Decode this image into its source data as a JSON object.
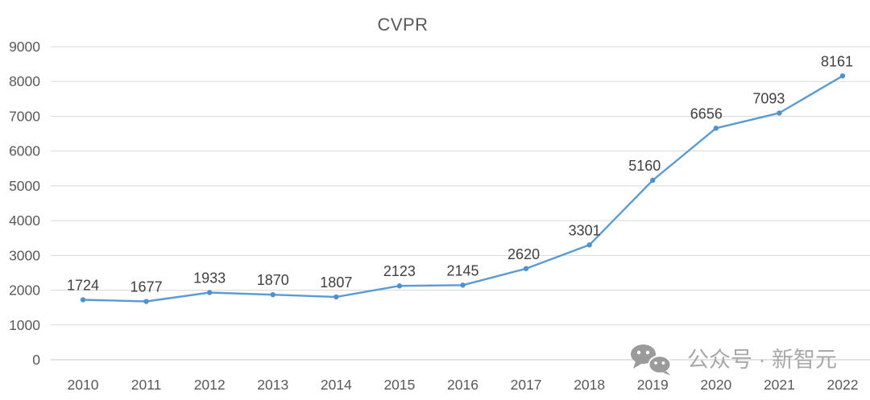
{
  "chart_data": {
    "type": "line",
    "title": "CVPR",
    "x": [
      2010,
      2011,
      2012,
      2013,
      2014,
      2015,
      2016,
      2017,
      2018,
      2019,
      2020,
      2021,
      2022
    ],
    "values": [
      1724,
      1677,
      1933,
      1870,
      1807,
      2123,
      2145,
      2620,
      3301,
      5160,
      6656,
      7093,
      8161
    ],
    "ylim": [
      0,
      9000
    ],
    "ytick_step": 1000,
    "yticks": [
      0,
      1000,
      2000,
      3000,
      4000,
      5000,
      6000,
      7000,
      8000,
      9000
    ],
    "grid": true,
    "legend_position": "none",
    "data_labels_visible": true,
    "colors": {
      "line": "#5B9BD5",
      "marker": "#4F91CD",
      "gridline": "#D9D9D9",
      "zero_axis": "#C6C6C6",
      "axis_label": "#595959",
      "data_label": "#404040",
      "title": "#595959"
    }
  },
  "watermark": {
    "icon": "wechat-icon",
    "text": "公众号 · 新智元",
    "color": "#A8A8A8"
  }
}
